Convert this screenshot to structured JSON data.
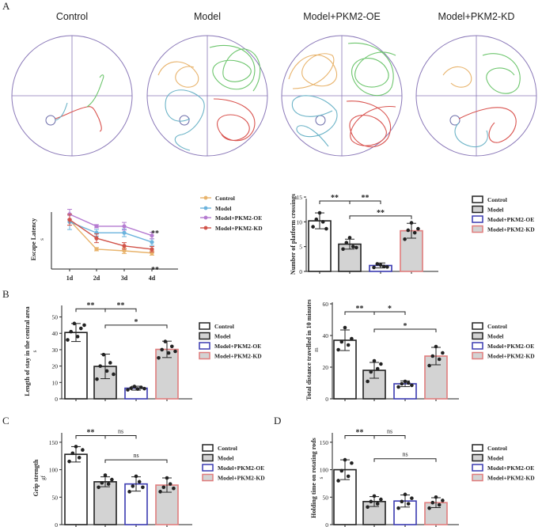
{
  "panel_labels": [
    "A",
    "B",
    "C",
    "D"
  ],
  "track_titles": [
    "Control",
    "Model",
    "Model+PKM2-OE",
    "Model+PKM2-KD"
  ],
  "colors": {
    "control": "#e8b36b",
    "model": "#6bb3dd",
    "oe": "#b57bd1",
    "kd": "#d1534a",
    "bar_control": "#ffffff",
    "bar_model": "#d3d3d3",
    "bar_oe_edge": "#3a3ab0",
    "bar_kd_edge": "#e07d7d",
    "track_green": "#6cc56c",
    "track_red": "#d9534f",
    "track_orange": "#e8b36b",
    "track_blue": "#6bb3c7",
    "circle": "#8a78b8"
  },
  "legend": {
    "labels": [
      "Control",
      "Model",
      "Model+PKM2-OE",
      "Model+PKM2-KD"
    ]
  },
  "chart_data": [
    {
      "id": "escape",
      "type": "line",
      "ylabel": "Escape Latency",
      "yunit": "s",
      "x": [
        "1d",
        "2d",
        "3d",
        "4d"
      ],
      "ylim": [
        0,
        100
      ],
      "series": [
        {
          "name": "Control",
          "values": [
            85,
            32,
            29,
            25
          ],
          "err": [
            9,
            3,
            5,
            4
          ]
        },
        {
          "name": "Model",
          "values": [
            82,
            62,
            62,
            45
          ],
          "err": [
            14,
            6,
            7,
            6
          ]
        },
        {
          "name": "Model+PKM2-OE",
          "values": [
            96,
            74,
            74,
            57
          ],
          "err": [
            9,
            3,
            7,
            6
          ]
        },
        {
          "name": "Model+PKM2-KD",
          "values": [
            86,
            52,
            38,
            32
          ],
          "err": [
            10,
            8,
            6,
            5
          ]
        }
      ],
      "annotations": [
        "**",
        "**"
      ]
    },
    {
      "id": "crossings",
      "type": "bar",
      "ylabel": "Number of platform crossings",
      "yunit": "",
      "categories": [
        "Control",
        "Model",
        "Model+PKM2-OE",
        "Model+PKM2-KD"
      ],
      "yticks": [
        0,
        5,
        10,
        15
      ],
      "ylim": [
        0,
        15
      ],
      "values": [
        10.2,
        5.5,
        1.2,
        8.2
      ],
      "err": [
        1.6,
        1.0,
        0.5,
        1.5
      ],
      "points": [
        [
          9,
          10.5,
          11.8,
          10,
          8.6
        ],
        [
          4.5,
          5.8,
          6.8,
          5,
          4.8
        ],
        [
          0.8,
          1.5,
          1.3,
          1.0,
          0.9
        ],
        [
          6.5,
          8.3,
          9.8,
          7.8,
          8.6
        ]
      ],
      "brackets": [
        {
          "from": 0,
          "to": 1,
          "y": 14.2,
          "label": "**"
        },
        {
          "from": 1,
          "to": 2,
          "y": 14.2,
          "label": "**"
        },
        {
          "from": 1,
          "to": 3,
          "y": 11.2,
          "label": "**"
        }
      ]
    },
    {
      "id": "central",
      "type": "bar",
      "ylabel": "Length of stay in the central area",
      "yunit": "s",
      "categories": [
        "Control",
        "Model",
        "Model+PKM2-OE",
        "Model+PKM2-KD"
      ],
      "yticks": [
        0,
        10,
        20,
        30,
        40,
        50
      ],
      "ylim": [
        0,
        58
      ],
      "values": [
        40.5,
        19.8,
        6.5,
        30.2
      ],
      "err": [
        5.5,
        7.5,
        1.2,
        5
      ],
      "points": [
        [
          36,
          41,
          46,
          38,
          43,
          45
        ],
        [
          12,
          20,
          27,
          17,
          22,
          15
        ],
        [
          5.5,
          6.5,
          7.5,
          6,
          7,
          6.2
        ],
        [
          25,
          30,
          35,
          28,
          32,
          29
        ]
      ],
      "brackets": [
        {
          "from": 0,
          "to": 1,
          "y": 55,
          "label": "**"
        },
        {
          "from": 1,
          "to": 2,
          "y": 55,
          "label": "**"
        },
        {
          "from": 1,
          "to": 3,
          "y": 45,
          "label": "*"
        }
      ]
    },
    {
      "id": "distance",
      "type": "bar",
      "ylabel": "Total distance travelled in 10 minutes",
      "yunit": "m",
      "categories": [
        "Control",
        "Model",
        "Model+PKM2-OE",
        "Model+PKM2-KD"
      ],
      "yticks": [
        0,
        20,
        40,
        60
      ],
      "ylim": [
        0,
        62
      ],
      "values": [
        37,
        18,
        9.5,
        27
      ],
      "err": [
        6.5,
        5,
        1.8,
        5.5
      ],
      "points": [
        [
          31,
          36,
          45,
          34,
          38
        ],
        [
          11,
          17,
          24,
          19,
          22
        ],
        [
          7.5,
          9.5,
          11,
          10,
          8.5
        ],
        [
          21,
          27,
          33,
          25,
          29
        ]
      ],
      "brackets": [
        {
          "from": 0,
          "to": 1,
          "y": 55,
          "label": "**"
        },
        {
          "from": 1,
          "to": 2,
          "y": 55,
          "label": "*"
        },
        {
          "from": 1,
          "to": 3,
          "y": 44,
          "label": "*"
        }
      ]
    },
    {
      "id": "grip",
      "type": "bar",
      "ylabel": "Grip strength",
      "yunit": "gf",
      "categories": [
        "Control",
        "Model",
        "Model+PKM2-OE",
        "Model+PKM2-KD"
      ],
      "yticks": [
        0,
        50,
        100,
        150
      ],
      "ylim": [
        0,
        170
      ],
      "values": [
        128,
        78,
        74,
        72
      ],
      "err": [
        14,
        9,
        13,
        13
      ],
      "points": [
        [
          115,
          130,
          142,
          122,
          136
        ],
        [
          68,
          76,
          90,
          74,
          82
        ],
        [
          60,
          70,
          88,
          78,
          68
        ],
        [
          60,
          68,
          85,
          74,
          66
        ]
      ],
      "brackets": [
        {
          "from": 0,
          "to": 1,
          "y": 162,
          "label": "**"
        },
        {
          "from": 1,
          "to": 2,
          "y": 162,
          "label": "ns"
        },
        {
          "from": 1,
          "to": 3,
          "y": 118,
          "label": "ns"
        }
      ]
    },
    {
      "id": "rods",
      "type": "bar",
      "ylabel": "Holding time on rotating rods",
      "yunit": "s",
      "categories": [
        "Control",
        "Model",
        "Model+PKM2-OE",
        "Model+PKM2-KD"
      ],
      "yticks": [
        0,
        50,
        100,
        150
      ],
      "ylim": [
        0,
        170
      ],
      "values": [
        100,
        42,
        43,
        40
      ],
      "err": [
        18,
        9,
        11,
        9
      ],
      "points": [
        [
          80,
          98,
          118,
          88,
          112
        ],
        [
          32,
          42,
          52,
          38,
          46
        ],
        [
          30,
          42,
          55,
          38,
          48
        ],
        [
          30,
          40,
          50,
          36,
          44
        ]
      ],
      "brackets": [
        {
          "from": 0,
          "to": 1,
          "y": 162,
          "label": "**"
        },
        {
          "from": 1,
          "to": 2,
          "y": 162,
          "label": "ns"
        },
        {
          "from": 1,
          "to": 3,
          "y": 120,
          "label": "ns"
        }
      ]
    }
  ]
}
